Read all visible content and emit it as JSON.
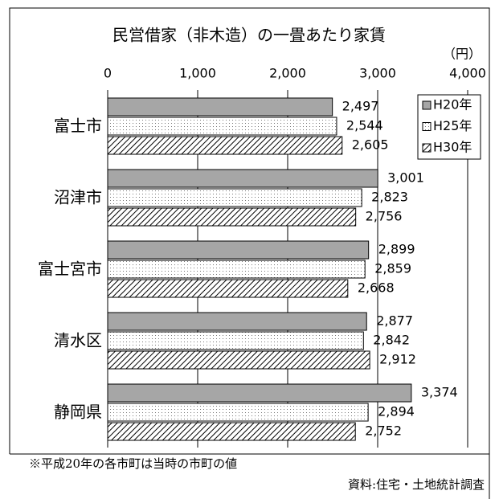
{
  "chart_data": {
    "type": "bar",
    "orientation": "horizontal",
    "title": "民営借家（非木造）の一畳あたり家賃",
    "unit_label": "（円）",
    "categories": [
      "富士市",
      "沼津市",
      "富士宮市",
      "清水区",
      "静岡県"
    ],
    "series": [
      {
        "name": "H20年",
        "color": "#a6a6a6",
        "pattern": "solid",
        "values": [
          2497,
          3001,
          2899,
          2877,
          3374
        ],
        "value_labels": [
          "2,497",
          "3,001",
          "2,899",
          "2,877",
          "3,374"
        ]
      },
      {
        "name": "H25年",
        "color": "#808080",
        "pattern": "dots",
        "values": [
          2544,
          2823,
          2859,
          2842,
          2894
        ],
        "value_labels": [
          "2,544",
          "2,823",
          "2,859",
          "2,842",
          "2,894"
        ]
      },
      {
        "name": "H30年",
        "color": "#000000",
        "pattern": "hatch",
        "values": [
          2605,
          2756,
          2668,
          2912,
          2752
        ],
        "value_labels": [
          "2,605",
          "2,756",
          "2,668",
          "2,912",
          "2,752"
        ]
      }
    ],
    "xlim": [
      0,
      4000
    ],
    "xticks": [
      0,
      {
        "value": 1000,
        "label": "1,000"
      },
      {
        "value": 2000,
        "label": "2,000"
      },
      {
        "value": 3000,
        "label": "3,000"
      },
      {
        "value": 4000,
        "label": "4,000"
      }
    ],
    "grid": true,
    "legend": "upper right",
    "note": "※平成20年の各市町は当時の市町の値",
    "source": "資料:住宅・土地統計調査"
  }
}
